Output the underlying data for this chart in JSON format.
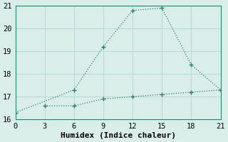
{
  "line1_x": [
    0,
    6,
    9,
    12,
    15,
    18,
    21
  ],
  "line1_y": [
    16.3,
    17.3,
    19.2,
    20.8,
    20.9,
    18.4,
    17.3
  ],
  "line2_x": [
    3,
    6,
    9,
    12,
    15,
    18,
    21
  ],
  "line2_y": [
    16.6,
    16.6,
    16.9,
    17.0,
    17.1,
    17.2,
    17.3
  ],
  "line_color": "#2d7d70",
  "background_color": "#daeee9",
  "grid_color": "#b8d8d2",
  "xlabel": "Humidex (Indice chaleur)",
  "xlim": [
    0,
    21
  ],
  "ylim": [
    16,
    21
  ],
  "xticks": [
    0,
    3,
    6,
    9,
    12,
    15,
    18,
    21
  ],
  "yticks": [
    16,
    17,
    18,
    19,
    20,
    21
  ],
  "xlabel_fontsize": 8,
  "tick_fontsize": 7.5,
  "marker": "+",
  "markersize": 4,
  "linewidth": 0.9
}
